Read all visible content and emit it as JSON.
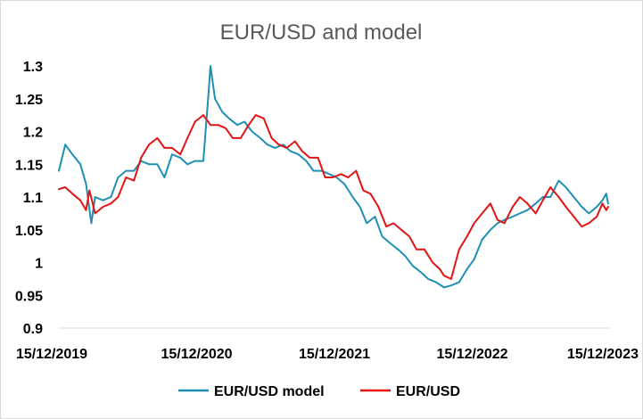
{
  "chart_data": {
    "type": "line",
    "title": "EUR/USD and model",
    "xlabel": "",
    "ylabel": "",
    "ylim": [
      0.9,
      1.3
    ],
    "y_ticks": [
      "0.9",
      "0.95",
      "1",
      "1.05",
      "1.1",
      "1.15",
      "1.2",
      "1.25",
      "1.3"
    ],
    "x_ticks": [
      "15/12/2019",
      "15/12/2020",
      "15/12/2021",
      "15/12/2022",
      "15/12/2023"
    ],
    "x_range": [
      "2019-12-15",
      "2023-12-15"
    ],
    "grid": false,
    "legend_position": "bottom",
    "series": [
      {
        "name": "EUR/USD model",
        "color": "#1f8fb4",
        "points": [
          [
            "2019-12-15",
            1.14
          ],
          [
            "2020-01-01",
            1.18
          ],
          [
            "2020-01-20",
            1.165
          ],
          [
            "2020-02-10",
            1.15
          ],
          [
            "2020-02-25",
            1.12
          ],
          [
            "2020-03-10",
            1.06
          ],
          [
            "2020-03-20",
            1.1
          ],
          [
            "2020-04-10",
            1.095
          ],
          [
            "2020-05-01",
            1.1
          ],
          [
            "2020-05-20",
            1.13
          ],
          [
            "2020-06-10",
            1.14
          ],
          [
            "2020-07-01",
            1.14
          ],
          [
            "2020-07-20",
            1.155
          ],
          [
            "2020-08-10",
            1.15
          ],
          [
            "2020-09-01",
            1.15
          ],
          [
            "2020-09-20",
            1.13
          ],
          [
            "2020-10-10",
            1.165
          ],
          [
            "2020-11-01",
            1.16
          ],
          [
            "2020-11-20",
            1.15
          ],
          [
            "2020-12-10",
            1.155
          ],
          [
            "2021-01-01",
            1.155
          ],
          [
            "2021-01-15",
            1.26
          ],
          [
            "2021-01-20",
            1.3
          ],
          [
            "2021-02-01",
            1.25
          ],
          [
            "2021-02-20",
            1.23
          ],
          [
            "2021-03-10",
            1.22
          ],
          [
            "2021-04-01",
            1.21
          ],
          [
            "2021-04-20",
            1.215
          ],
          [
            "2021-05-10",
            1.2
          ],
          [
            "2021-06-01",
            1.19
          ],
          [
            "2021-06-20",
            1.18
          ],
          [
            "2021-07-10",
            1.175
          ],
          [
            "2021-08-01",
            1.18
          ],
          [
            "2021-08-20",
            1.17
          ],
          [
            "2021-09-10",
            1.165
          ],
          [
            "2021-10-01",
            1.155
          ],
          [
            "2021-10-20",
            1.14
          ],
          [
            "2021-11-10",
            1.14
          ],
          [
            "2021-12-01",
            1.135
          ],
          [
            "2021-12-20",
            1.13
          ],
          [
            "2022-01-10",
            1.12
          ],
          [
            "2022-02-01",
            1.1
          ],
          [
            "2022-02-20",
            1.085
          ],
          [
            "2022-03-10",
            1.06
          ],
          [
            "2022-04-01",
            1.07
          ],
          [
            "2022-04-20",
            1.04
          ],
          [
            "2022-05-10",
            1.03
          ],
          [
            "2022-06-01",
            1.02
          ],
          [
            "2022-06-20",
            1.01
          ],
          [
            "2022-07-10",
            0.995
          ],
          [
            "2022-08-01",
            0.985
          ],
          [
            "2022-08-20",
            0.975
          ],
          [
            "2022-09-10",
            0.97
          ],
          [
            "2022-10-01",
            0.962
          ],
          [
            "2022-10-20",
            0.965
          ],
          [
            "2022-11-10",
            0.97
          ],
          [
            "2022-12-01",
            0.99
          ],
          [
            "2022-12-20",
            1.005
          ],
          [
            "2023-01-10",
            1.035
          ],
          [
            "2023-02-01",
            1.05
          ],
          [
            "2023-02-20",
            1.06
          ],
          [
            "2023-03-10",
            1.065
          ],
          [
            "2023-04-01",
            1.07
          ],
          [
            "2023-04-20",
            1.075
          ],
          [
            "2023-05-10",
            1.08
          ],
          [
            "2023-06-01",
            1.09
          ],
          [
            "2023-06-20",
            1.1
          ],
          [
            "2023-07-10",
            1.1
          ],
          [
            "2023-08-01",
            1.125
          ],
          [
            "2023-08-20",
            1.115
          ],
          [
            "2023-09-10",
            1.1
          ],
          [
            "2023-10-01",
            1.085
          ],
          [
            "2023-10-20",
            1.075
          ],
          [
            "2023-11-10",
            1.085
          ],
          [
            "2023-11-25",
            1.095
          ],
          [
            "2023-12-05",
            1.105
          ],
          [
            "2023-12-10",
            1.09
          ]
        ]
      },
      {
        "name": "EUR/USD",
        "color": "#e31414",
        "points": [
          [
            "2019-12-15",
            1.112
          ],
          [
            "2020-01-01",
            1.115
          ],
          [
            "2020-01-20",
            1.105
          ],
          [
            "2020-02-10",
            1.095
          ],
          [
            "2020-02-25",
            1.08
          ],
          [
            "2020-03-05",
            1.11
          ],
          [
            "2020-03-20",
            1.075
          ],
          [
            "2020-04-10",
            1.085
          ],
          [
            "2020-05-01",
            1.09
          ],
          [
            "2020-05-20",
            1.1
          ],
          [
            "2020-06-10",
            1.13
          ],
          [
            "2020-07-01",
            1.125
          ],
          [
            "2020-07-20",
            1.16
          ],
          [
            "2020-08-10",
            1.18
          ],
          [
            "2020-09-01",
            1.19
          ],
          [
            "2020-09-20",
            1.175
          ],
          [
            "2020-10-10",
            1.175
          ],
          [
            "2020-11-01",
            1.165
          ],
          [
            "2020-11-20",
            1.19
          ],
          [
            "2020-12-10",
            1.215
          ],
          [
            "2021-01-01",
            1.225
          ],
          [
            "2021-01-20",
            1.21
          ],
          [
            "2021-02-10",
            1.21
          ],
          [
            "2021-03-01",
            1.205
          ],
          [
            "2021-03-20",
            1.19
          ],
          [
            "2021-04-10",
            1.19
          ],
          [
            "2021-05-01",
            1.21
          ],
          [
            "2021-05-20",
            1.225
          ],
          [
            "2021-06-10",
            1.22
          ],
          [
            "2021-07-01",
            1.19
          ],
          [
            "2021-07-20",
            1.18
          ],
          [
            "2021-08-10",
            1.175
          ],
          [
            "2021-09-01",
            1.185
          ],
          [
            "2021-09-20",
            1.17
          ],
          [
            "2021-10-10",
            1.16
          ],
          [
            "2021-11-01",
            1.16
          ],
          [
            "2021-11-20",
            1.13
          ],
          [
            "2021-12-10",
            1.13
          ],
          [
            "2022-01-01",
            1.135
          ],
          [
            "2022-01-20",
            1.13
          ],
          [
            "2022-02-10",
            1.14
          ],
          [
            "2022-03-01",
            1.11
          ],
          [
            "2022-03-20",
            1.105
          ],
          [
            "2022-04-10",
            1.085
          ],
          [
            "2022-05-01",
            1.055
          ],
          [
            "2022-05-20",
            1.06
          ],
          [
            "2022-06-10",
            1.05
          ],
          [
            "2022-07-01",
            1.04
          ],
          [
            "2022-07-20",
            1.02
          ],
          [
            "2022-08-10",
            1.02
          ],
          [
            "2022-09-01",
            1.0
          ],
          [
            "2022-09-20",
            0.99
          ],
          [
            "2022-10-01",
            0.98
          ],
          [
            "2022-10-20",
            0.975
          ],
          [
            "2022-11-10",
            1.02
          ],
          [
            "2022-12-01",
            1.04
          ],
          [
            "2022-12-20",
            1.06
          ],
          [
            "2023-01-10",
            1.075
          ],
          [
            "2023-02-01",
            1.09
          ],
          [
            "2023-02-20",
            1.065
          ],
          [
            "2023-03-10",
            1.06
          ],
          [
            "2023-04-01",
            1.085
          ],
          [
            "2023-04-20",
            1.1
          ],
          [
            "2023-05-10",
            1.09
          ],
          [
            "2023-06-01",
            1.075
          ],
          [
            "2023-06-20",
            1.095
          ],
          [
            "2023-07-10",
            1.115
          ],
          [
            "2023-08-01",
            1.1
          ],
          [
            "2023-08-20",
            1.085
          ],
          [
            "2023-09-10",
            1.07
          ],
          [
            "2023-10-01",
            1.055
          ],
          [
            "2023-10-20",
            1.06
          ],
          [
            "2023-11-10",
            1.07
          ],
          [
            "2023-11-25",
            1.09
          ],
          [
            "2023-12-05",
            1.08
          ],
          [
            "2023-12-10",
            1.085
          ]
        ]
      }
    ]
  }
}
